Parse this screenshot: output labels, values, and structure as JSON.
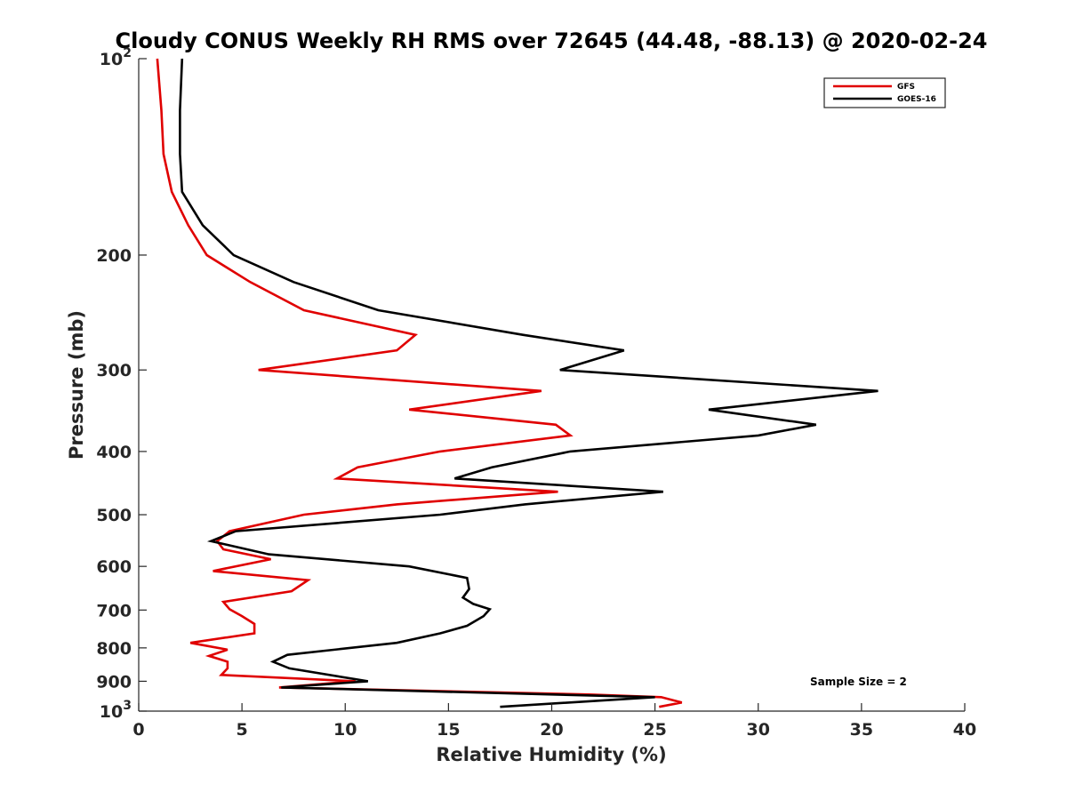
{
  "chart_data": {
    "type": "line",
    "title": "Cloudy CONUS Weekly RH RMS over 72645 (44.48, -88.13) @ 2020-02-24",
    "xlabel": "Relative Humidity (%)",
    "ylabel": "Pressure (mb)",
    "xlim": [
      0,
      40
    ],
    "ylim": [
      100,
      1000
    ],
    "y_scale": "log",
    "y_reversed": true,
    "grid": false,
    "legend_position": "top-right",
    "annotation": "Sample Size = 2",
    "x_ticks": [
      "0",
      "5",
      "10",
      "15",
      "20",
      "25",
      "30",
      "35",
      "40"
    ],
    "y_tick_labels": [
      {
        "value": 100,
        "base": "10",
        "exp": "2"
      },
      {
        "value": 200,
        "base": "200",
        "exp": ""
      },
      {
        "value": 300,
        "base": "300",
        "exp": ""
      },
      {
        "value": 400,
        "base": "400",
        "exp": ""
      },
      {
        "value": 500,
        "base": "500",
        "exp": ""
      },
      {
        "value": 600,
        "base": "600",
        "exp": ""
      },
      {
        "value": 700,
        "base": "700",
        "exp": ""
      },
      {
        "value": 800,
        "base": "800",
        "exp": ""
      },
      {
        "value": 900,
        "base": "900",
        "exp": ""
      },
      {
        "value": 1000,
        "base": "10",
        "exp": "3"
      }
    ],
    "series": [
      {
        "name": "GFS",
        "color": "#e00000",
        "points": [
          [
            0.9,
            100
          ],
          [
            1.1,
            120
          ],
          [
            1.2,
            140
          ],
          [
            1.6,
            160
          ],
          [
            2.4,
            180
          ],
          [
            3.3,
            200
          ],
          [
            5.4,
            220
          ],
          [
            8.0,
            243
          ],
          [
            13.4,
            265
          ],
          [
            12.5,
            280
          ],
          [
            5.8,
            300
          ],
          [
            19.5,
            323
          ],
          [
            13.1,
            345
          ],
          [
            20.2,
            364
          ],
          [
            20.9,
            378
          ],
          [
            14.6,
            400
          ],
          [
            10.6,
            423
          ],
          [
            9.6,
            440
          ],
          [
            20.3,
            461
          ],
          [
            12.5,
            482
          ],
          [
            8.0,
            500
          ],
          [
            4.4,
            530
          ],
          [
            3.8,
            549
          ],
          [
            4.1,
            565
          ],
          [
            6.4,
            585
          ],
          [
            3.6,
            610
          ],
          [
            8.2,
            630
          ],
          [
            7.4,
            655
          ],
          [
            4.1,
            680
          ],
          [
            4.4,
            698
          ],
          [
            5.0,
            715
          ],
          [
            5.6,
            735
          ],
          [
            5.6,
            760
          ],
          [
            2.5,
            786
          ],
          [
            4.3,
            805
          ],
          [
            3.4,
            823
          ],
          [
            4.3,
            840
          ],
          [
            4.3,
            860
          ],
          [
            4.0,
            880
          ],
          [
            10.5,
            900
          ],
          [
            6.8,
            920
          ],
          [
            21.8,
            943
          ],
          [
            25.3,
            952
          ],
          [
            26.3,
            970
          ],
          [
            25.2,
            985
          ]
        ]
      },
      {
        "name": "GOES-16",
        "color": "#000000",
        "points": [
          [
            2.1,
            100
          ],
          [
            2.0,
            120
          ],
          [
            2.0,
            140
          ],
          [
            2.1,
            160
          ],
          [
            3.1,
            180
          ],
          [
            4.6,
            200
          ],
          [
            7.5,
            220
          ],
          [
            11.6,
            243
          ],
          [
            18.6,
            265
          ],
          [
            23.5,
            280
          ],
          [
            20.4,
            300
          ],
          [
            35.8,
            323
          ],
          [
            27.6,
            345
          ],
          [
            32.8,
            364
          ],
          [
            30.0,
            378
          ],
          [
            20.9,
            400
          ],
          [
            17.1,
            423
          ],
          [
            15.3,
            440
          ],
          [
            25.4,
            461
          ],
          [
            18.7,
            482
          ],
          [
            14.6,
            500
          ],
          [
            4.7,
            530
          ],
          [
            3.5,
            549
          ],
          [
            6.3,
            575
          ],
          [
            13.1,
            600
          ],
          [
            15.9,
            625
          ],
          [
            16.0,
            650
          ],
          [
            15.7,
            670
          ],
          [
            16.2,
            685
          ],
          [
            17.0,
            698
          ],
          [
            16.7,
            715
          ],
          [
            15.9,
            740
          ],
          [
            14.6,
            760
          ],
          [
            12.5,
            786
          ],
          [
            7.2,
            820
          ],
          [
            6.5,
            840
          ],
          [
            7.3,
            860
          ],
          [
            11.1,
            900
          ],
          [
            6.9,
            920
          ],
          [
            25.0,
            952
          ],
          [
            17.5,
            985
          ]
        ]
      }
    ]
  }
}
